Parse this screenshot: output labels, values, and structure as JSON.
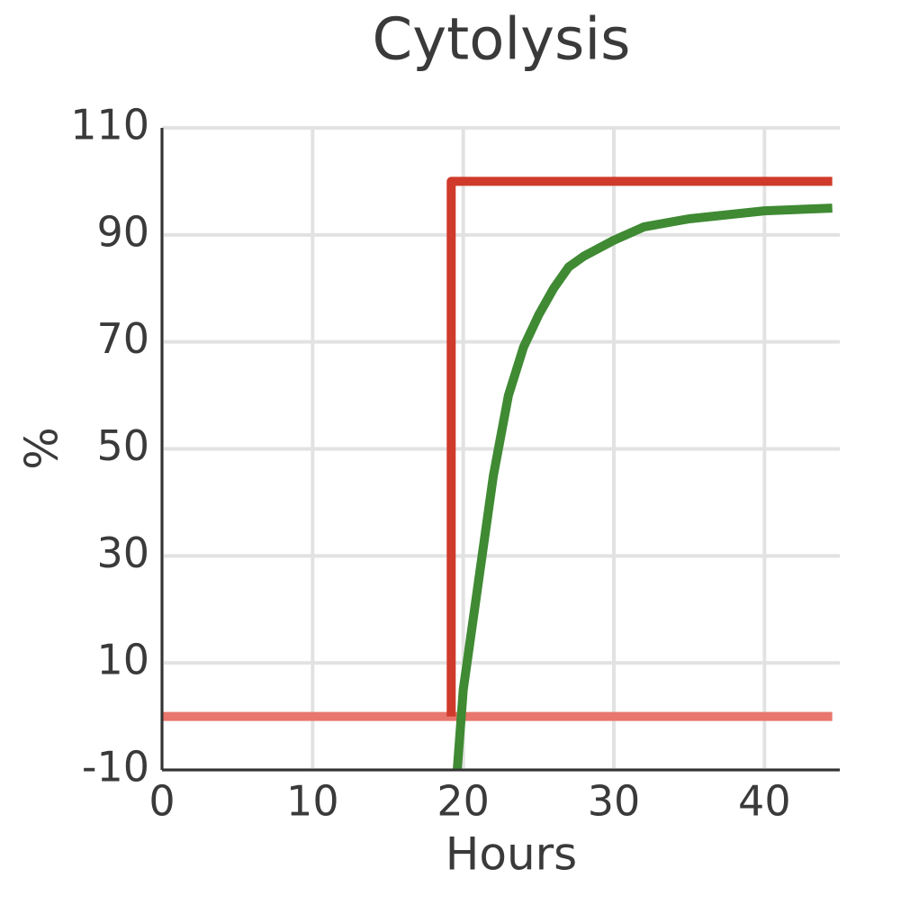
{
  "chart_data": {
    "type": "line",
    "title": "Cytolysis",
    "x_label": "Hours",
    "y_label": "%",
    "xlim": [
      0,
      45
    ],
    "xticks": [
      0,
      10,
      20,
      30,
      40
    ],
    "ylim": [
      -10,
      110
    ],
    "yticks": [
      -10,
      10,
      30,
      50,
      70,
      90,
      110
    ],
    "grid": true,
    "series": [
      {
        "color": "#e8766c",
        "x": [
          0,
          44.5
        ],
        "values": [
          0,
          0
        ]
      },
      {
        "color": "#3f8a33",
        "x": [
          19.6,
          20,
          21,
          22,
          23,
          24,
          25,
          26,
          27,
          28,
          30,
          32,
          35,
          40,
          44.5
        ],
        "values": [
          -10,
          5,
          25,
          45,
          60,
          69,
          75,
          80,
          84,
          86,
          89,
          91.5,
          93,
          94.5,
          95
        ]
      },
      {
        "color": "#d03a2a",
        "x": [
          19.2,
          19.2,
          44.5
        ],
        "values": [
          0,
          100,
          100
        ]
      }
    ]
  }
}
